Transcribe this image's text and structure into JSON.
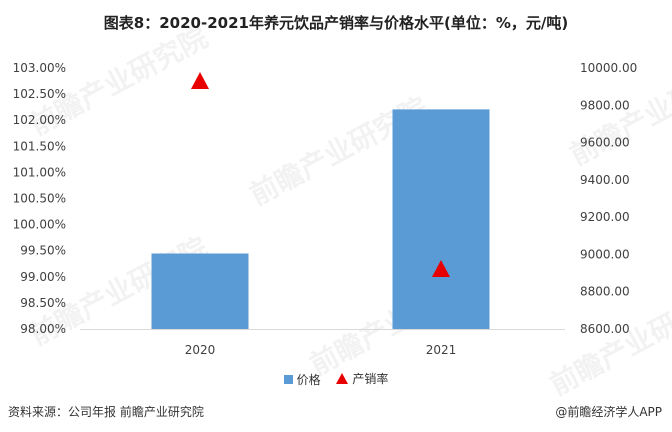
{
  "title": "图表8：2020-2021年养元饮品产销率与价格水平(单位：%，元/吨)",
  "footer": {
    "source": "资料来源：公司年报 前瞻产业研究院",
    "credit": "@前瞻经济学人APP"
  },
  "watermark": "前瞻产业研究院",
  "colors": {
    "bar": "#5b9bd5",
    "marker": "#e80000"
  },
  "chart_data": {
    "type": "bar",
    "categories": [
      "2020",
      "2021"
    ],
    "series": [
      {
        "name": "价格",
        "type": "bar",
        "axis": "right",
        "values": [
          9005,
          9778
        ]
      },
      {
        "name": "产销率",
        "type": "scatter",
        "marker": "triangle",
        "axis": "left",
        "values": [
          102.75,
          99.15
        ]
      }
    ],
    "left_axis": {
      "min": 98,
      "max": 103,
      "step": 0.5,
      "ticks": [
        "98.00%",
        "98.50%",
        "99.00%",
        "99.50%",
        "100.00%",
        "100.50%",
        "101.00%",
        "101.50%",
        "102.00%",
        "102.50%",
        "103.00%"
      ]
    },
    "right_axis": {
      "min": 8600,
      "max": 10000,
      "step": 200,
      "ticks": [
        "8600.00",
        "8800.00",
        "9000.00",
        "9200.00",
        "9400.00",
        "9600.00",
        "9800.00",
        "10000.00"
      ]
    },
    "legend": "bottom-center",
    "grid": false
  }
}
